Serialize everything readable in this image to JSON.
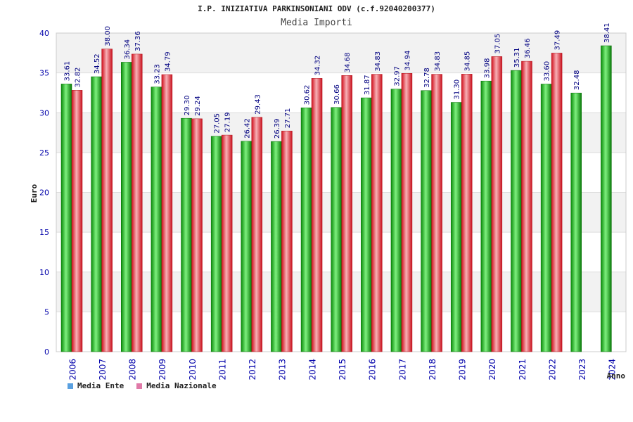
{
  "header": {
    "title": "I.P. INIZIATIVA PARKINSONIANI ODV (c.f.92040200377)",
    "subtitle": "Media Importi"
  },
  "legend": {
    "ente_label": "Media Ente",
    "nazionale_label": "Media Nazionale",
    "ente_swatch_color": "#5aa0e0",
    "nazionale_swatch_color": "#e07aa8"
  },
  "colors": {
    "ente": "#0aa00a",
    "ente_light": "#6fe06f",
    "nazionale": "#e0202e",
    "nazionale_light": "#f7a0a8",
    "axis_text": "#0000aa",
    "label_text": "#000080",
    "band": "#f2f2f2"
  },
  "chart_data": {
    "type": "bar",
    "title": "I.P. INIZIATIVA PARKINSONIANI ODV (c.f.92040200377)",
    "subtitle": "Media Importi",
    "xlabel": "Anno",
    "ylabel": "Euro",
    "ylim": [
      0,
      40
    ],
    "yticks": [
      0,
      5,
      10,
      15,
      20,
      25,
      30,
      35,
      40
    ],
    "categories": [
      "2006",
      "2007",
      "2008",
      "2009",
      "2010",
      "2011",
      "2012",
      "2013",
      "2014",
      "2015",
      "2016",
      "2017",
      "2018",
      "2019",
      "2020",
      "2021",
      "2022",
      "2023",
      "2024"
    ],
    "series": [
      {
        "name": "Media Ente",
        "values": [
          33.61,
          34.52,
          36.34,
          33.23,
          29.3,
          27.05,
          26.42,
          26.39,
          30.62,
          30.66,
          31.87,
          32.97,
          32.78,
          31.3,
          33.98,
          35.31,
          33.6,
          32.48,
          38.41
        ],
        "labels": [
          "33.61",
          "34.52",
          "36.34",
          "33.23",
          "29.30",
          "27.05",
          "26.42",
          "26.39",
          "30.62",
          "30.66",
          "31.87",
          "32.97",
          "32.78",
          "31.30",
          "33.98",
          "35.31",
          "33.60",
          "32.48",
          "38.41"
        ]
      },
      {
        "name": "Media Nazionale",
        "values": [
          32.82,
          38.0,
          37.36,
          34.79,
          29.24,
          27.19,
          29.43,
          27.71,
          34.32,
          34.68,
          34.83,
          34.94,
          34.83,
          34.85,
          37.05,
          36.46,
          37.49,
          null,
          null
        ],
        "labels": [
          "32.82",
          "38.00",
          "37.36",
          "34.79",
          "29.24",
          "27.19",
          "29.43",
          "27.71",
          "34.32",
          "34.68",
          "34.83",
          "34.94",
          "34.83",
          "34.85",
          "37.05",
          "36.46",
          "37.49",
          null,
          null
        ]
      }
    ],
    "grid": true,
    "legend_position": "bottom-left"
  }
}
